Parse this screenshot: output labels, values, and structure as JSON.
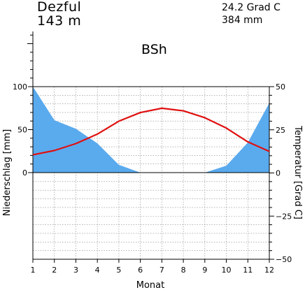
{
  "header": {
    "station": "Dezful",
    "elevation": "143 m",
    "mean_temp": "24.2 Grad C",
    "annual_precip": "384 mm",
    "climate_class": "BSh"
  },
  "colors": {
    "precip_fill": "#5aaaee",
    "temp_line": "#e01010",
    "grid": "#888888"
  },
  "chart_data": {
    "type": "area",
    "xlabel": "Monat",
    "ylabel_left": "Niederschlag [mm]",
    "ylabel_right": "Temperatur [Grad C]",
    "categories": [
      "1",
      "2",
      "3",
      "4",
      "5",
      "6",
      "7",
      "8",
      "9",
      "10",
      "11",
      "12"
    ],
    "precip_ylim": [
      0,
      100
    ],
    "precip_ticks": [
      0,
      50,
      100
    ],
    "precip_extra_tick": 300,
    "temp_ylim": [
      -50,
      50
    ],
    "temp_ticks": [
      -50,
      -25,
      0,
      25,
      50
    ],
    "grid": true,
    "series": [
      {
        "values": [
          100,
          61,
          51,
          34,
          9,
          0,
          0,
          0,
          0,
          8,
          35,
          81
        ]
      },
      {
        "values": [
          10.5,
          13,
          17,
          22.5,
          30,
          35,
          37.5,
          36,
          32,
          26,
          18,
          12.5
        ]
      }
    ]
  }
}
